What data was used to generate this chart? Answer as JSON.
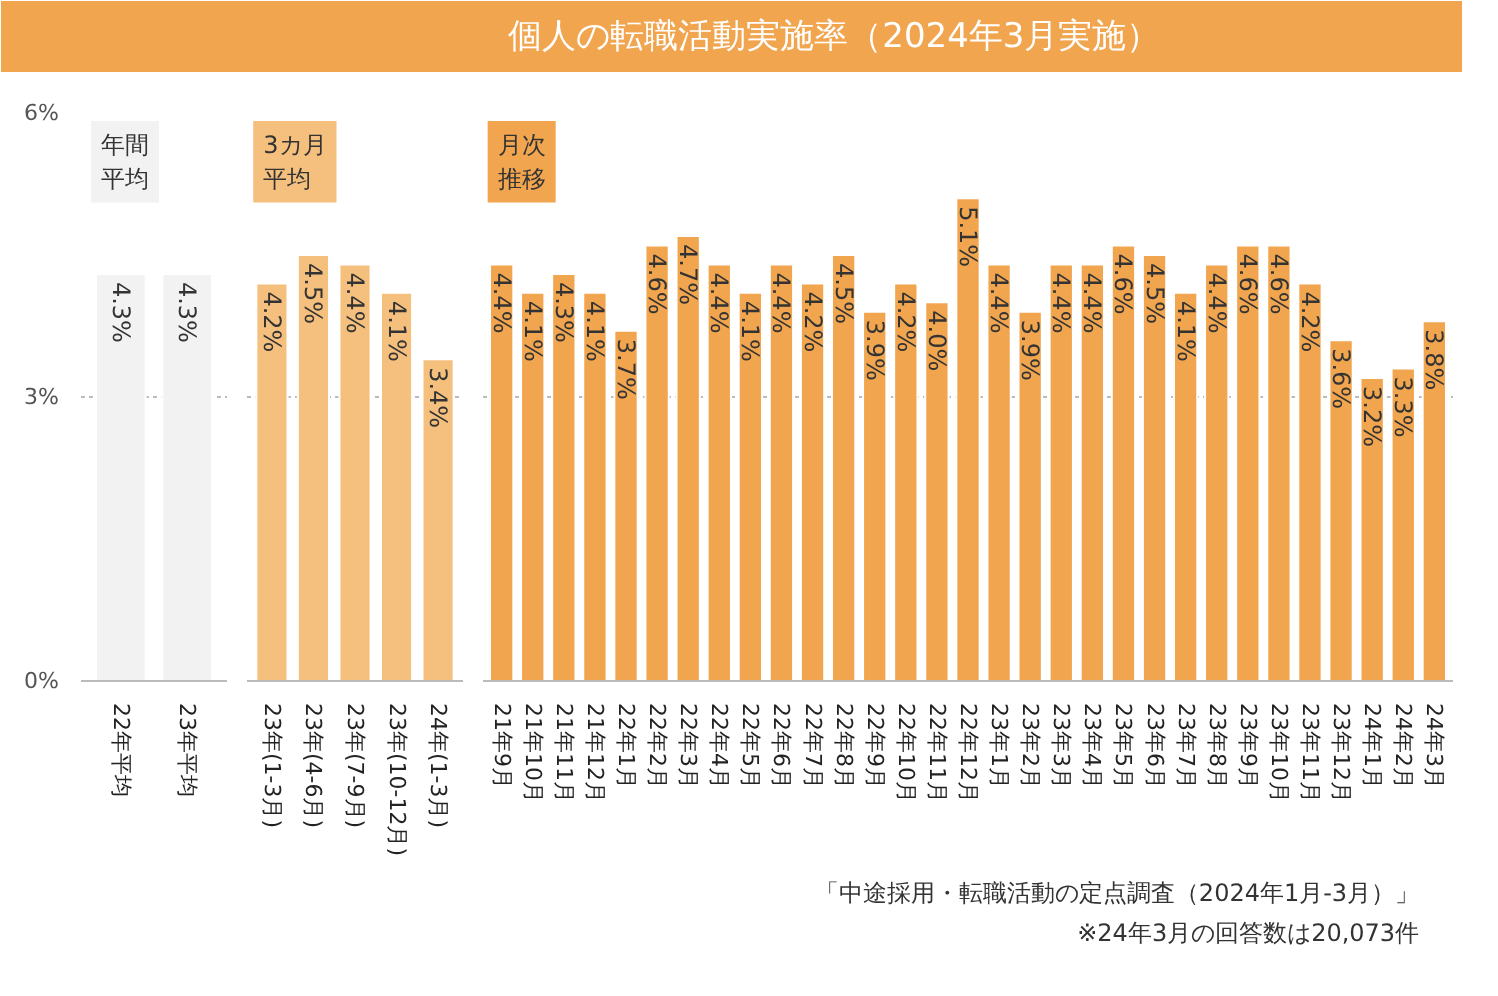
{
  "chart_data": [
    {
      "type": "bar",
      "subtitle": "年間平均",
      "categories": [
        "22年平均",
        "23年平均"
      ],
      "values": [
        4.3,
        4.3
      ],
      "value_labels": [
        "4.3%",
        "4.3%"
      ],
      "color": "#f2f2f2",
      "ylim": [
        0,
        6
      ],
      "yticks": [
        {
          "value": 0,
          "label": "0%"
        },
        {
          "value": 3,
          "label": "3%"
        },
        {
          "value": 6,
          "label": "6%"
        }
      ],
      "grid": "y"
    },
    {
      "type": "bar",
      "subtitle": "3カ月平均",
      "categories": [
        "23年(1-3月)",
        "23年(4-6月)",
        "23年(7-9月)",
        "23年(10-12月)",
        "24年(1-3月)"
      ],
      "values": [
        4.2,
        4.5,
        4.4,
        4.1,
        3.4
      ],
      "value_labels": [
        "4.2%",
        "4.5%",
        "4.4%",
        "4.1%",
        "3.4%"
      ],
      "color": "#f5c07e",
      "ylim": [
        0,
        6
      ],
      "yticks": [
        0,
        3,
        6
      ],
      "tick_labels": "x",
      "grid": "y"
    },
    {
      "type": "bar",
      "title": "個人の転職活動実施率（2024年3月実施）",
      "subtitle": "月次推移",
      "categories": [
        "21年9月",
        "21年10月",
        "21年11月",
        "21年12月",
        "22年1月",
        "22年2月",
        "22年3月",
        "22年4月",
        "22年5月",
        "22年6月",
        "22年7月",
        "22年8月",
        "22年9月",
        "22年10月",
        "22年11月",
        "22年12月",
        "23年1月",
        "23年2月",
        "23年3月",
        "23年4月",
        "23年5月",
        "23年6月",
        "23年7月",
        "23年8月",
        "23年9月",
        "23年10月",
        "23年11月",
        "23年12月",
        "24年1月",
        "24年2月",
        "24年3月"
      ],
      "values": [
        4.4,
        4.1,
        4.3,
        4.1,
        3.7,
        4.6,
        4.7,
        4.4,
        4.1,
        4.4,
        4.2,
        4.5,
        3.9,
        4.2,
        4.0,
        5.1,
        4.4,
        3.9,
        4.4,
        4.4,
        4.6,
        4.5,
        4.1,
        4.4,
        4.6,
        4.6,
        4.2,
        3.6,
        3.2,
        3.3,
        3.8
      ],
      "value_labels": [
        "4.4%",
        "4.1%",
        "4.3%",
        "4.1%",
        "3.7%",
        "4.6%",
        "4.7%",
        "4.4%",
        "4.1%",
        "4.4%",
        "4.2%",
        "4.5%",
        "3.9%",
        "4.2%",
        "4.0%",
        "5.1%",
        "4.4%",
        "3.9%",
        "4.4%",
        "4.4%",
        "4.6%",
        "4.5%",
        "4.1%",
        "4.4%",
        "4.6%",
        "4.6%",
        "4.2%",
        "3.6%",
        "3.2%",
        "3.3%",
        "3.8%"
      ],
      "color": "#f0a54e",
      "ylim": [
        0,
        6
      ],
      "yticks": [
        0,
        3,
        6
      ],
      "tick_labels": "x",
      "grid": "y",
      "annotations": [
        "「中途採用・転職活動の定点調査（2024年1月-3月）」",
        "※24年3月の回答数は20,073件"
      ]
    }
  ]
}
